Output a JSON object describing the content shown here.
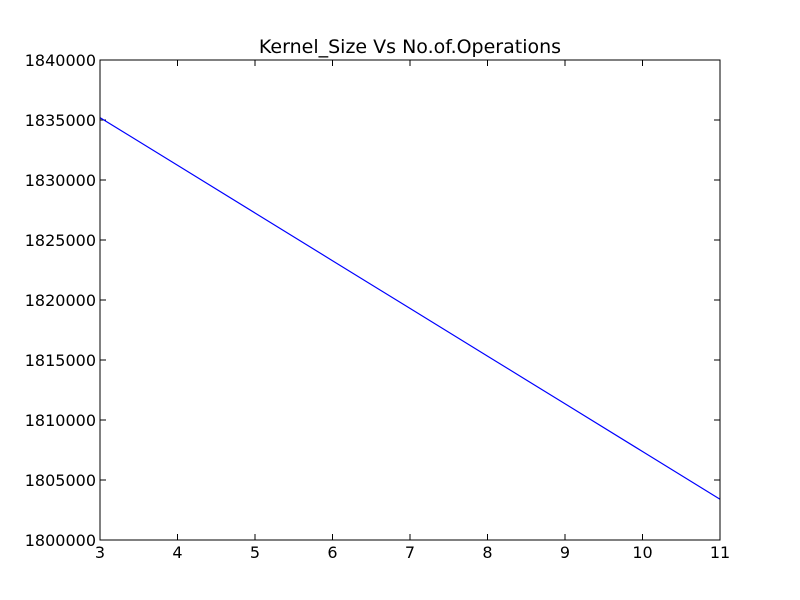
{
  "chart_data": {
    "type": "line",
    "title": "Kernel_Size Vs No.of.Operations",
    "xlabel": "",
    "ylabel": "",
    "xlim": [
      3,
      11
    ],
    "ylim": [
      1800000,
      1840000
    ],
    "x_ticks": [
      3,
      4,
      5,
      6,
      7,
      8,
      9,
      10,
      11
    ],
    "y_ticks": [
      1800000,
      1805000,
      1810000,
      1815000,
      1820000,
      1825000,
      1830000,
      1835000,
      1840000
    ],
    "grid": false,
    "series": [
      {
        "color": "#0000ff",
        "x": [
          3,
          4,
          5,
          6,
          7,
          8,
          9,
          10,
          11
        ],
        "y": [
          1835200,
          1831225,
          1827250,
          1823275,
          1819300,
          1815325,
          1811350,
          1807375,
          1803400
        ]
      }
    ]
  }
}
